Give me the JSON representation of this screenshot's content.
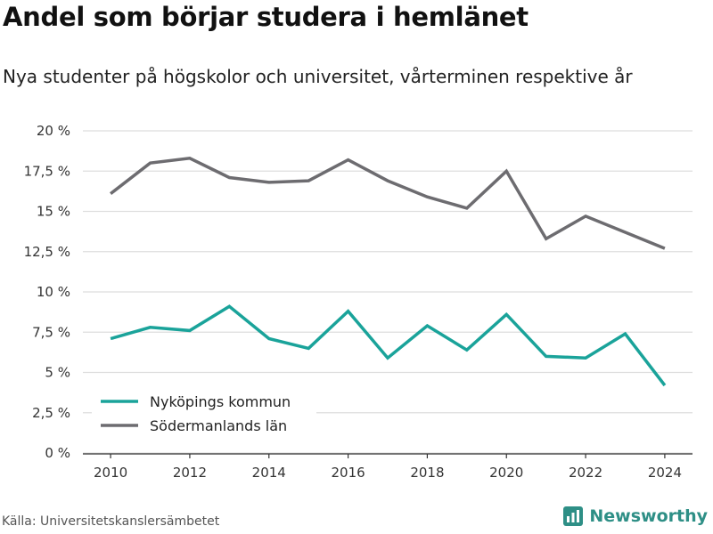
{
  "header": {
    "title": "Andel som börjar studera i hemlänet",
    "subtitle": "Nya studenter på högskolor och universitet, vårterminen respektive år"
  },
  "footer": {
    "source": "Källa: Universitetskanslersämbetet",
    "brand": "Newsworthy",
    "brand_icon": "newsworthy-logo-icon",
    "brand_color": "#2e8f86"
  },
  "chart_data": {
    "type": "line",
    "title": "Andel som börjar studera i hemlänet",
    "subtitle": "Nya studenter på högskolor och universitet, vårterminen respektive år",
    "xlabel": "",
    "ylabel": "",
    "x": [
      2010,
      2011,
      2012,
      2013,
      2014,
      2015,
      2016,
      2017,
      2018,
      2019,
      2020,
      2021,
      2022,
      2023,
      2024
    ],
    "xlim": [
      2009.3,
      2024.7
    ],
    "ylim": [
      0,
      20
    ],
    "xticks": [
      2010,
      2012,
      2014,
      2016,
      2018,
      2020,
      2022,
      2024
    ],
    "xtick_labels": [
      "2010",
      "2012",
      "2014",
      "2016",
      "2018",
      "2020",
      "2022",
      "2024"
    ],
    "yticks": [
      0,
      2.5,
      5,
      7.5,
      10,
      12.5,
      15,
      17.5,
      20
    ],
    "ytick_labels": [
      "0 %",
      "2,5 %",
      "5 %",
      "7,5 %",
      "10 %",
      "12,5 %",
      "15 %",
      "17,5 %",
      "20 %"
    ],
    "grid": "horizontal",
    "legend_position": "bottom-left",
    "series": [
      {
        "name": "Nyköpings kommun",
        "color": "#1aa39a",
        "values": [
          7.1,
          7.8,
          7.6,
          9.1,
          7.1,
          6.5,
          8.8,
          5.9,
          7.9,
          6.4,
          8.6,
          6.0,
          5.9,
          7.4,
          4.2
        ]
      },
      {
        "name": "Södermanlands län",
        "color": "#6d6c70",
        "values": [
          16.1,
          18.0,
          18.3,
          17.1,
          16.8,
          16.9,
          18.2,
          16.9,
          15.9,
          15.2,
          17.5,
          13.3,
          14.7,
          13.7,
          12.7
        ]
      }
    ]
  }
}
